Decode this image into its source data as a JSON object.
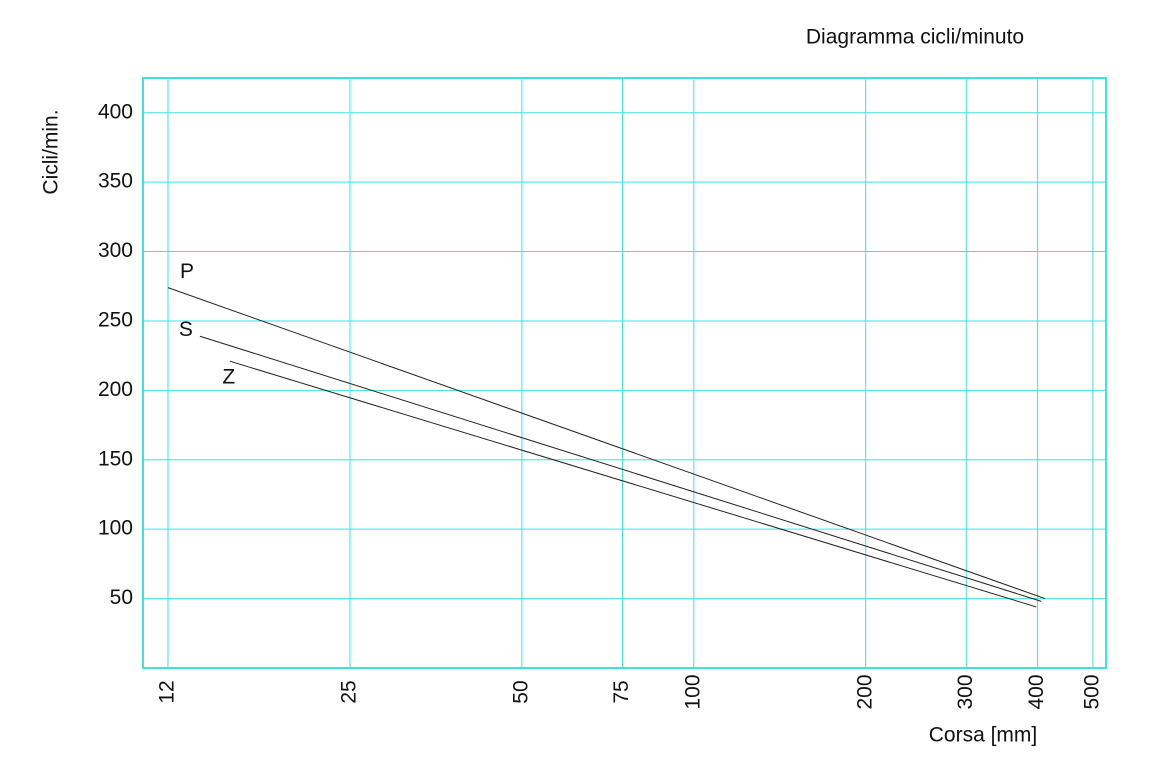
{
  "chart_data": {
    "type": "line",
    "title": "Diagramma cicli/minuto",
    "x_label": "Corsa [mm]",
    "y_label": "Cicli/min.",
    "x_scale": "log",
    "xlim": [
      10.85,
      527
    ],
    "ylim": [
      0,
      425
    ],
    "xticks": [
      12,
      25,
      50,
      75,
      100,
      200,
      300,
      400,
      500
    ],
    "yticks": [
      50,
      100,
      150,
      200,
      250,
      300,
      350,
      400
    ],
    "grid": true,
    "grid_color": "#3fe0e0",
    "series": [
      {
        "name": "P",
        "color": "#222222",
        "x": [
          12,
          412
        ],
        "values": [
          274,
          50
        ]
      },
      {
        "name": "S",
        "color": "#222222",
        "x": [
          13.65,
          406
        ],
        "values": [
          239,
          48
        ]
      },
      {
        "name": "Z",
        "color": "#222222",
        "x": [
          15.4,
          398
        ],
        "values": [
          221,
          44
        ]
      }
    ]
  }
}
